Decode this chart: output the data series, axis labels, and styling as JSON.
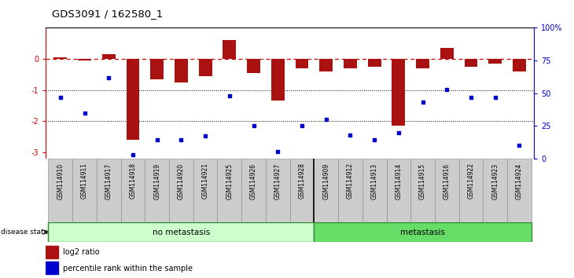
{
  "title": "GDS3091 / 162580_1",
  "samples": [
    "GSM114910",
    "GSM114911",
    "GSM114917",
    "GSM114918",
    "GSM114919",
    "GSM114920",
    "GSM114921",
    "GSM114925",
    "GSM114926",
    "GSM114927",
    "GSM114928",
    "GSM114909",
    "GSM114912",
    "GSM114913",
    "GSM114914",
    "GSM114915",
    "GSM114916",
    "GSM114922",
    "GSM114923",
    "GSM114924"
  ],
  "log2_ratio": [
    0.05,
    -0.05,
    0.15,
    -2.6,
    -0.65,
    -0.75,
    -0.55,
    0.6,
    -0.45,
    -1.35,
    -0.3,
    -0.4,
    -0.3,
    -0.25,
    -2.15,
    -0.3,
    0.35,
    -0.25,
    -0.15,
    -0.4
  ],
  "pct_rank": [
    47,
    35,
    62,
    3,
    14,
    14,
    17,
    48,
    25,
    5,
    25,
    30,
    18,
    14,
    20,
    43,
    53,
    47,
    47,
    10
  ],
  "group_sizes": [
    11,
    9
  ],
  "no_metastasis_color": "#ccffcc",
  "metastasis_color": "#66dd66",
  "bar_color": "#aa1111",
  "dot_color": "#0000cc",
  "dashed_line_color": "#cc0000",
  "ylim_left": [
    -3.2,
    1.0
  ],
  "ylim_right": [
    0,
    100
  ],
  "right_tick_labels": [
    "0",
    "25",
    "50",
    "75",
    "100%"
  ],
  "right_tick_vals": [
    0,
    25,
    50,
    75,
    100
  ]
}
